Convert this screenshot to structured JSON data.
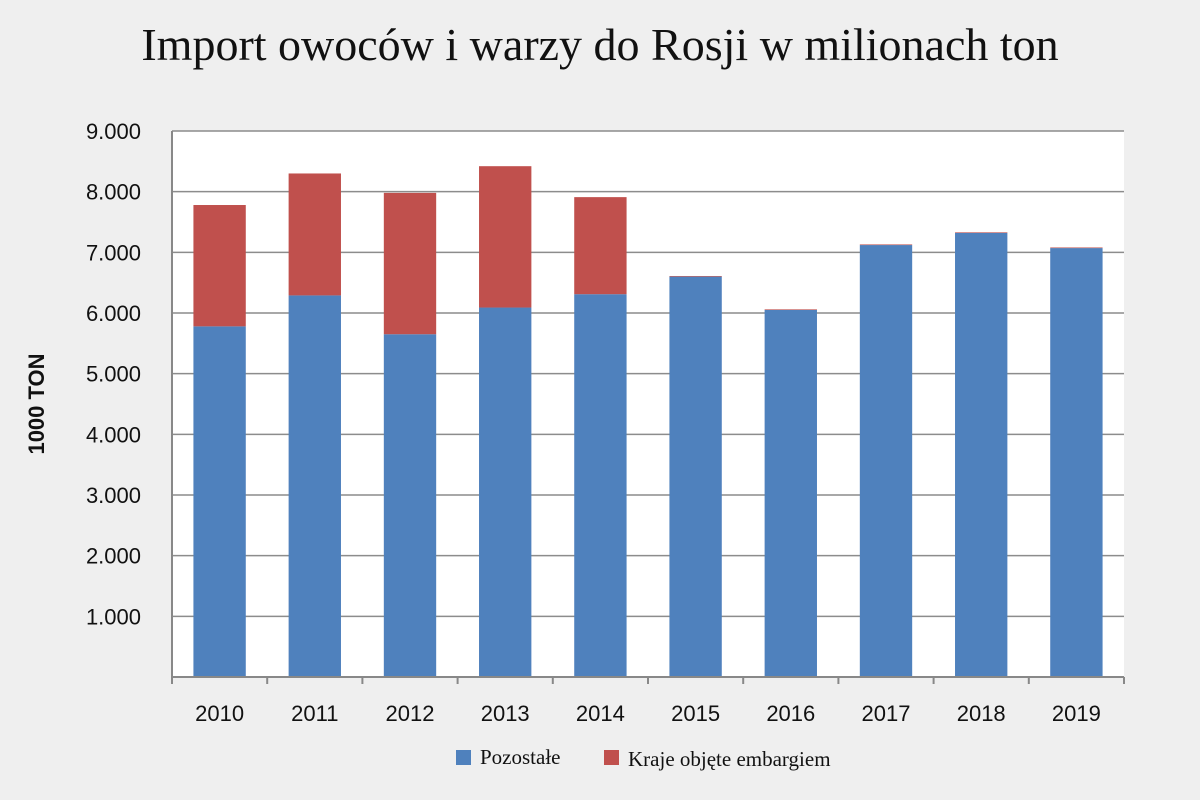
{
  "title": "Import owoców i warzy do Rosji w milionach ton",
  "chart_data": {
    "type": "bar",
    "stacked": true,
    "title": "Import owoców i warzy do Rosji w milionach ton",
    "xlabel": "",
    "ylabel": "1000 TON",
    "ylim": [
      0,
      9000
    ],
    "yticks": [
      1000,
      2000,
      3000,
      4000,
      5000,
      6000,
      7000,
      8000,
      9000
    ],
    "ytick_labels": [
      "1.000",
      "2.000",
      "3.000",
      "4.000",
      "5.000",
      "6.000",
      "7.000",
      "8.000",
      "9.000"
    ],
    "categories": [
      "2010",
      "2011",
      "2012",
      "2013",
      "2014",
      "2015",
      "2016",
      "2017",
      "2018",
      "2019"
    ],
    "series": [
      {
        "name": "Pozostałe",
        "color": "#4f81bd",
        "values": [
          5780,
          6290,
          5650,
          6090,
          6310,
          6600,
          6050,
          7120,
          7320,
          7070
        ]
      },
      {
        "name": "Kraje objęte embargiem",
        "color": "#c0504d",
        "values": [
          2000,
          2010,
          2330,
          2330,
          1600,
          10,
          10,
          10,
          10,
          10
        ]
      }
    ],
    "grid": true,
    "legend_position": "bottom"
  }
}
